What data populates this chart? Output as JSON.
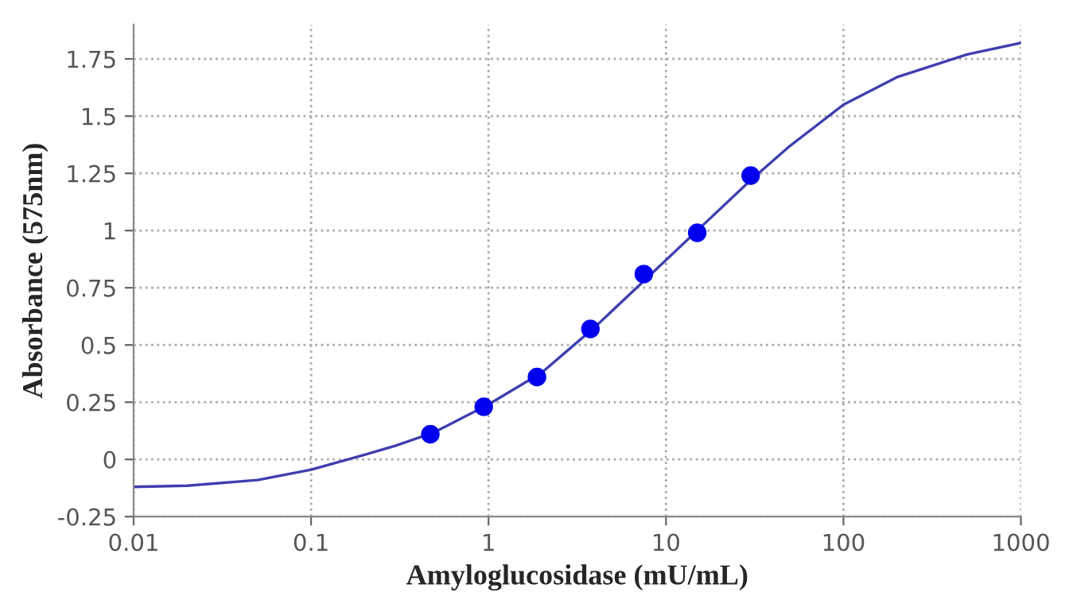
{
  "chart_data": {
    "type": "line",
    "xlabel": "Amyloglucosidase (mU/mL)",
    "ylabel": "Absorbance (575nm)",
    "log": "x",
    "xlim": [
      0.01,
      1000
    ],
    "xticks": [
      0.01,
      0.1,
      1,
      10,
      100,
      1000
    ],
    "ylim": [
      -0.25,
      1.9
    ],
    "yticks": [
      -0.25,
      0,
      0.25,
      0.5,
      0.75,
      1,
      1.25,
      1.5,
      1.75
    ],
    "grid": true,
    "series": [
      {
        "color": "#3f3fb0",
        "marker": "none",
        "x": [
          0.01,
          0.02,
          0.05,
          0.1,
          0.2,
          0.3,
          0.5,
          1,
          2,
          4,
          8,
          15,
          30,
          50,
          100,
          200,
          500,
          1000
        ],
        "values": [
          -0.12,
          -0.115,
          -0.09,
          -0.045,
          0.02,
          0.06,
          0.12,
          0.24,
          0.38,
          0.58,
          0.8,
          1.0,
          1.22,
          1.37,
          1.55,
          1.67,
          1.77,
          1.82
        ]
      },
      {
        "type": "scatter",
        "color": "#0000ee",
        "marker": "circle",
        "x": [
          0.47,
          0.94,
          1.875,
          3.75,
          7.5,
          15,
          30
        ],
        "values": [
          0.11,
          0.23,
          0.36,
          0.57,
          0.81,
          0.99,
          1.24
        ]
      }
    ]
  }
}
